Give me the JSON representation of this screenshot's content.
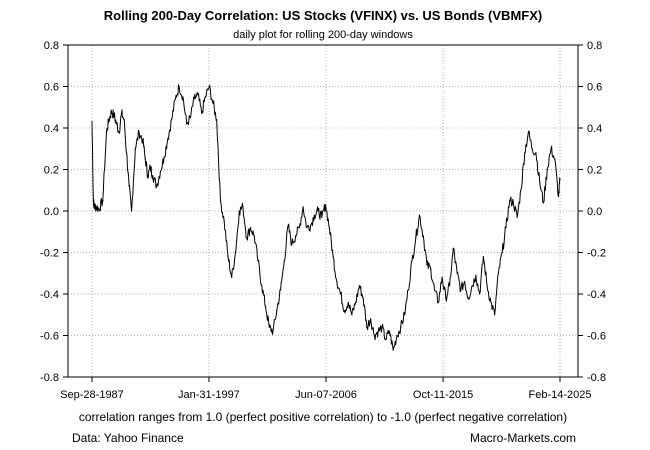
{
  "chart_data": {
    "type": "line",
    "title": "Rolling 200-Day Correlation: US Stocks (VFINX) vs. US Bonds (VBMFX)",
    "subtitle": "daily plot for rolling 200-day windows",
    "xlabel": "",
    "ylabel": "",
    "ylim": [
      -0.8,
      0.8
    ],
    "xlim": [
      1987.74,
      2025.12
    ],
    "y_ticks": [
      -0.8,
      -0.6,
      -0.4,
      -0.2,
      0.0,
      0.2,
      0.4,
      0.6,
      0.8
    ],
    "y_tick_labels": [
      "-0.8",
      "-0.6",
      "-0.4",
      "-0.2",
      "0.0",
      "0.2",
      "0.4",
      "0.6",
      "0.8"
    ],
    "x_ticks": [
      1987.74,
      1997.08,
      2006.43,
      2015.78,
      2025.12
    ],
    "x_tick_labels": [
      "Sep-28-1987",
      "Jan-31-1997",
      "Jun-07-2006",
      "Oct-11-2015",
      "Feb-14-2025"
    ],
    "grid": true,
    "legend": "none",
    "series": [
      {
        "name": "Rolling 200-day correlation VFINX vs VBMFX",
        "x": [
          1987.74,
          1987.85,
          1987.92,
          1988.1,
          1988.3,
          1988.6,
          1988.9,
          1989.1,
          1989.3,
          1989.5,
          1989.7,
          1989.9,
          1990.1,
          1990.3,
          1990.5,
          1990.7,
          1990.9,
          1991.2,
          1991.5,
          1991.8,
          1992.0,
          1992.2,
          1992.4,
          1992.6,
          1992.9,
          1993.2,
          1993.5,
          1993.8,
          1994.1,
          1994.4,
          1994.7,
          1995.0,
          1995.3,
          1995.6,
          1995.9,
          1996.2,
          1996.5,
          1996.8,
          1997.1,
          1997.4,
          1997.7,
          1998.0,
          1998.3,
          1998.6,
          1998.9,
          1999.2,
          1999.5,
          1999.8,
          2000.1,
          2000.4,
          2000.7,
          2001.0,
          2001.3,
          2001.6,
          2001.9,
          2002.2,
          2002.5,
          2002.8,
          2003.1,
          2003.4,
          2003.7,
          2004.0,
          2004.3,
          2004.6,
          2004.9,
          2005.2,
          2005.5,
          2005.8,
          2006.1,
          2006.4,
          2006.7,
          2007.0,
          2007.3,
          2007.6,
          2007.9,
          2008.2,
          2008.5,
          2008.8,
          2009.1,
          2009.4,
          2009.7,
          2010.0,
          2010.3,
          2010.6,
          2010.9,
          2011.2,
          2011.5,
          2011.8,
          2012.1,
          2012.4,
          2012.7,
          2013.0,
          2013.3,
          2013.6,
          2013.9,
          2014.2,
          2014.5,
          2014.8,
          2015.1,
          2015.4,
          2015.7,
          2016.0,
          2016.3,
          2016.6,
          2016.9,
          2017.2,
          2017.5,
          2017.8,
          2018.1,
          2018.4,
          2018.7,
          2019.0,
          2019.3,
          2019.6,
          2019.9,
          2020.2,
          2020.5,
          2020.8,
          2021.1,
          2021.4,
          2021.7,
          2022.0,
          2022.3,
          2022.6,
          2022.9,
          2023.2,
          2023.5,
          2023.8,
          2024.1,
          2024.4,
          2024.7,
          2025.0,
          2025.12
        ],
        "values": [
          0.43,
          0.05,
          0.02,
          0.02,
          0.01,
          0.05,
          0.38,
          0.44,
          0.48,
          0.46,
          0.42,
          0.38,
          0.47,
          0.44,
          0.28,
          0.12,
          0.0,
          0.3,
          0.38,
          0.34,
          0.25,
          0.17,
          0.21,
          0.17,
          0.12,
          0.19,
          0.26,
          0.35,
          0.44,
          0.54,
          0.6,
          0.55,
          0.42,
          0.45,
          0.54,
          0.56,
          0.47,
          0.55,
          0.6,
          0.52,
          0.44,
          0.05,
          -0.05,
          -0.22,
          -0.32,
          -0.2,
          0.0,
          0.02,
          -0.13,
          -0.08,
          -0.12,
          -0.24,
          -0.36,
          -0.46,
          -0.56,
          -0.58,
          -0.48,
          -0.38,
          -0.24,
          -0.07,
          -0.16,
          -0.12,
          -0.08,
          0.02,
          -0.08,
          -0.07,
          -0.02,
          0.0,
          -0.03,
          0.03,
          -0.08,
          -0.22,
          -0.34,
          -0.4,
          -0.48,
          -0.44,
          -0.5,
          -0.44,
          -0.36,
          -0.42,
          -0.56,
          -0.52,
          -0.6,
          -0.58,
          -0.56,
          -0.62,
          -0.58,
          -0.67,
          -0.6,
          -0.56,
          -0.5,
          -0.38,
          -0.24,
          -0.13,
          -0.02,
          -0.12,
          -0.26,
          -0.28,
          -0.38,
          -0.44,
          -0.32,
          -0.42,
          -0.36,
          -0.18,
          -0.3,
          -0.38,
          -0.34,
          -0.42,
          -0.36,
          -0.31,
          -0.4,
          -0.22,
          -0.36,
          -0.44,
          -0.5,
          -0.3,
          -0.2,
          -0.08,
          0.05,
          0.04,
          -0.03,
          0.1,
          0.28,
          0.38,
          0.3,
          0.28,
          0.14,
          0.04,
          0.2,
          0.3,
          0.25,
          0.07,
          0.15
        ]
      }
    ],
    "footnote": "correlation ranges from 1.0 (perfect positive correlation) to -1.0 (perfect negative correlation)",
    "source": "Data: Yahoo Finance",
    "credit": "Macro-Markets.com"
  }
}
